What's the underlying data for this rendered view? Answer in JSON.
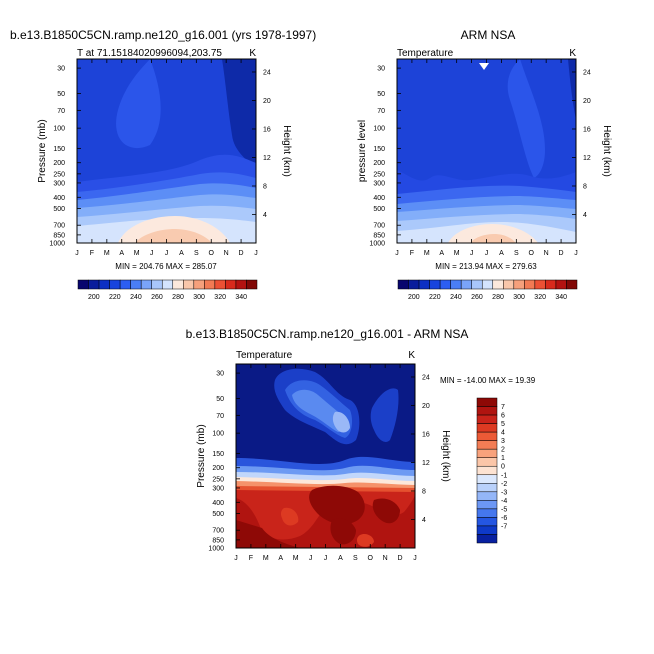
{
  "panels": {
    "model": {
      "title": "b.e13.B1850C5CN.ramp.ne120_g16.001 (yrs 1978-1997)",
      "subtitle_left": "T at 71.15184020996094,203.75",
      "subtitle_right": "K",
      "ylabel": "Pressure (mb)",
      "ylabel_right": "Height (km)",
      "stats": "MIN = 204.76  MAX = 285.07"
    },
    "obs": {
      "title": "ARM NSA",
      "subtitle_left": "Temperature",
      "subtitle_right": "K",
      "ylabel": "pressure level",
      "ylabel_right": "Height (km)",
      "stats": "MIN = 213.94  MAX = 279.63"
    },
    "diff": {
      "title": "b.e13.B1850C5CN.ramp.ne120_g16.001 - ARM NSA",
      "subtitle_left": "Temperature",
      "subtitle_right": "K",
      "ylabel": "Pressure (mb)",
      "ylabel_right": "Height (km)",
      "stats": "MIN = -14.00  MAX =  19.39"
    }
  },
  "chart_data": [
    {
      "type": "heatmap",
      "name": "model-temperature",
      "title": "b.e13.B1850C5CN.ramp.ne120_g16.001 (yrs 1978-1997)",
      "xlabel": "",
      "ylabel": "Pressure (mb)",
      "x_ticks": [
        "J",
        "F",
        "M",
        "A",
        "M",
        "J",
        "J",
        "A",
        "S",
        "O",
        "N",
        "D",
        "J"
      ],
      "y_ticks": [
        30,
        50,
        70,
        100,
        150,
        200,
        250,
        300,
        400,
        500,
        700,
        850,
        1000
      ],
      "y_range": [
        25,
        1000
      ],
      "right_ticks_km": [
        4,
        8,
        12,
        16,
        20,
        24
      ],
      "units": "K",
      "min": 204.76,
      "max": 285.07
    },
    {
      "type": "heatmap",
      "name": "obs-temperature",
      "title": "ARM NSA",
      "xlabel": "",
      "ylabel": "pressure level",
      "x_ticks": [
        "J",
        "F",
        "M",
        "A",
        "M",
        "J",
        "J",
        "A",
        "S",
        "O",
        "N",
        "D",
        "J"
      ],
      "y_ticks": [
        30,
        50,
        70,
        100,
        150,
        200,
        250,
        300,
        400,
        500,
        700,
        850,
        1000
      ],
      "y_range": [
        25,
        1000
      ],
      "right_ticks_km": [
        4,
        8,
        12,
        16,
        20,
        24
      ],
      "units": "K",
      "min": 213.94,
      "max": 279.63
    },
    {
      "type": "heatmap",
      "name": "difference",
      "title": "b.e13.B1850C5CN.ramp.ne120_g16.001 - ARM NSA",
      "xlabel": "",
      "ylabel": "Pressure (mb)",
      "x_ticks": [
        "J",
        "F",
        "M",
        "A",
        "M",
        "J",
        "J",
        "A",
        "S",
        "O",
        "N",
        "D",
        "J"
      ],
      "y_ticks": [
        30,
        50,
        70,
        100,
        150,
        200,
        250,
        300,
        400,
        500,
        700,
        850,
        1000
      ],
      "y_range": [
        25,
        1000
      ],
      "right_ticks_km": [
        4,
        8,
        12,
        16,
        20,
        24
      ],
      "units": "K",
      "min": -14.0,
      "max": 19.39
    }
  ],
  "colorbar_temp": {
    "labels": [
      "200",
      "220",
      "240",
      "260",
      "280",
      "300",
      "320",
      "340"
    ],
    "colors": [
      "#08066e",
      "#0a1d9c",
      "#0c2fc4",
      "#1844de",
      "#2c5ef2",
      "#4a7ef6",
      "#7aa4f8",
      "#a8c6fb",
      "#d3e3fd",
      "#fce8dc",
      "#f9c6aa",
      "#f6a07c",
      "#f27a54",
      "#ec5034",
      "#d82a1c",
      "#b41210",
      "#820806"
    ]
  },
  "colorbar_diff": {
    "labels": [
      "7",
      "6",
      "5",
      "4",
      "3",
      "2",
      "1",
      "0",
      "-1",
      "-2",
      "-3",
      "-4",
      "-5",
      "-6",
      "-7"
    ],
    "colors": [
      "#8e0906",
      "#b01410",
      "#c9231a",
      "#dd3a22",
      "#ec5a36",
      "#f37d55",
      "#f8a27c",
      "#fbc6a8",
      "#fde3d2",
      "#dbe8fd",
      "#b9d1fb",
      "#94b6f8",
      "#6c97f4",
      "#4577ee",
      "#2456e2",
      "#0e39c8",
      "#0820a0"
    ]
  }
}
